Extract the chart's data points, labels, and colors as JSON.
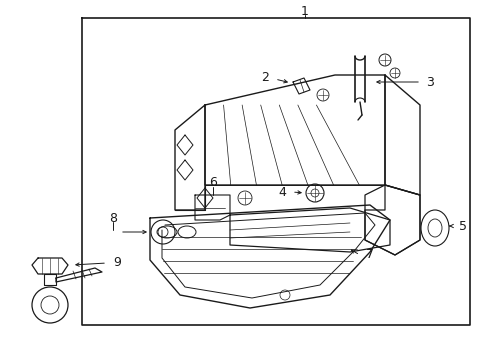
{
  "bg_color": "#ffffff",
  "lc": "#1a1a1a",
  "figsize": [
    4.89,
    3.6
  ],
  "dpi": 100,
  "fs": 8
}
